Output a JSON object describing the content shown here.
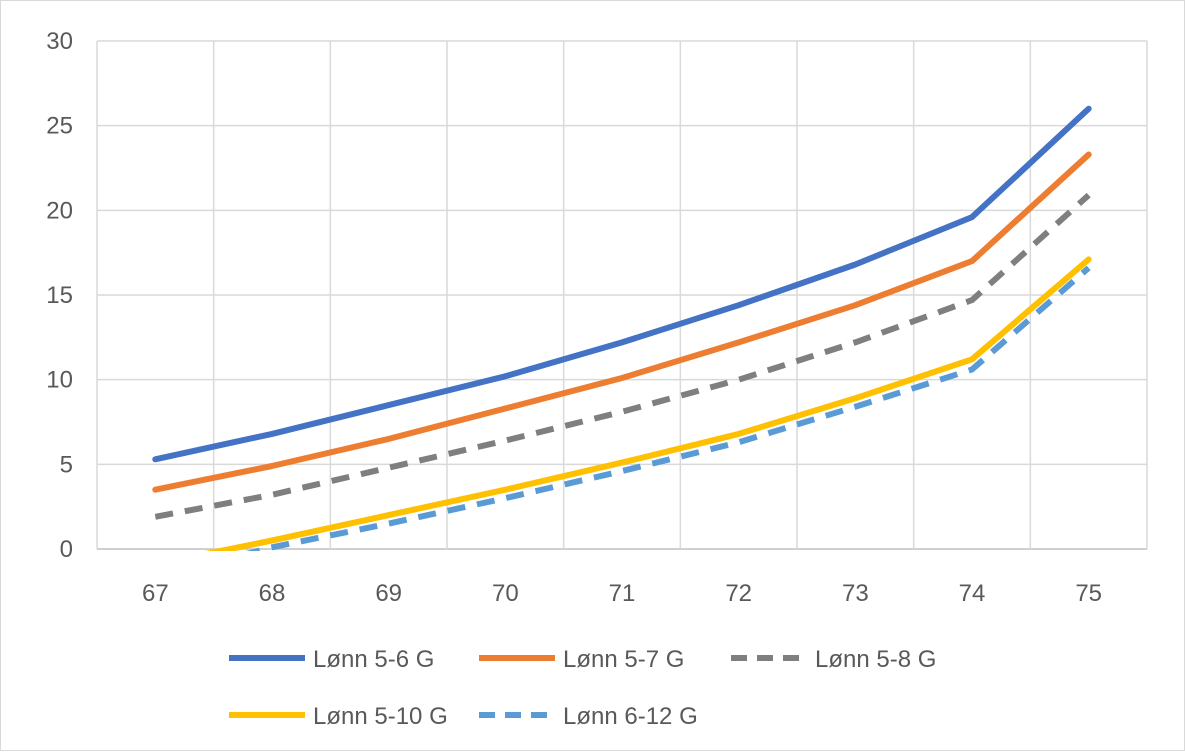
{
  "chart_data": {
    "type": "line",
    "title": "",
    "xlabel": "",
    "ylabel": "",
    "x": [
      67,
      68,
      69,
      70,
      71,
      72,
      73,
      74,
      75
    ],
    "ylim": [
      0,
      30
    ],
    "yticks": [
      0,
      5,
      10,
      15,
      20,
      25,
      30
    ],
    "grid": true,
    "legend_position": "bottom",
    "series": [
      {
        "name": "Lønn 5-6 G",
        "color": "#4472C4",
        "dash": "solid",
        "values": [
          5.3,
          6.8,
          8.5,
          10.2,
          12.2,
          14.4,
          16.8,
          19.6,
          26.0
        ]
      },
      {
        "name": "Lønn 5-7 G",
        "color": "#ED7D31",
        "dash": "solid",
        "values": [
          3.5,
          4.9,
          6.5,
          8.3,
          10.1,
          12.2,
          14.4,
          17.0,
          23.3
        ]
      },
      {
        "name": "Lønn 5-8 G",
        "color": "#7F7F7F",
        "dash": "dashed",
        "values": [
          1.9,
          3.2,
          4.8,
          6.4,
          8.1,
          10.0,
          12.2,
          14.7,
          20.9
        ]
      },
      {
        "name": "Lønn 5-10 G",
        "color": "#FFC000",
        "dash": "solid",
        "values": [
          -0.9,
          0.5,
          2.0,
          3.5,
          5.1,
          6.8,
          8.9,
          11.2,
          17.1
        ]
      },
      {
        "name": "Lønn 6-12 G",
        "color": "#5B9BD5",
        "dash": "dashed",
        "values": [
          -1.7,
          0.1,
          1.5,
          3.0,
          4.6,
          6.3,
          8.4,
          10.6,
          16.6
        ]
      }
    ]
  }
}
